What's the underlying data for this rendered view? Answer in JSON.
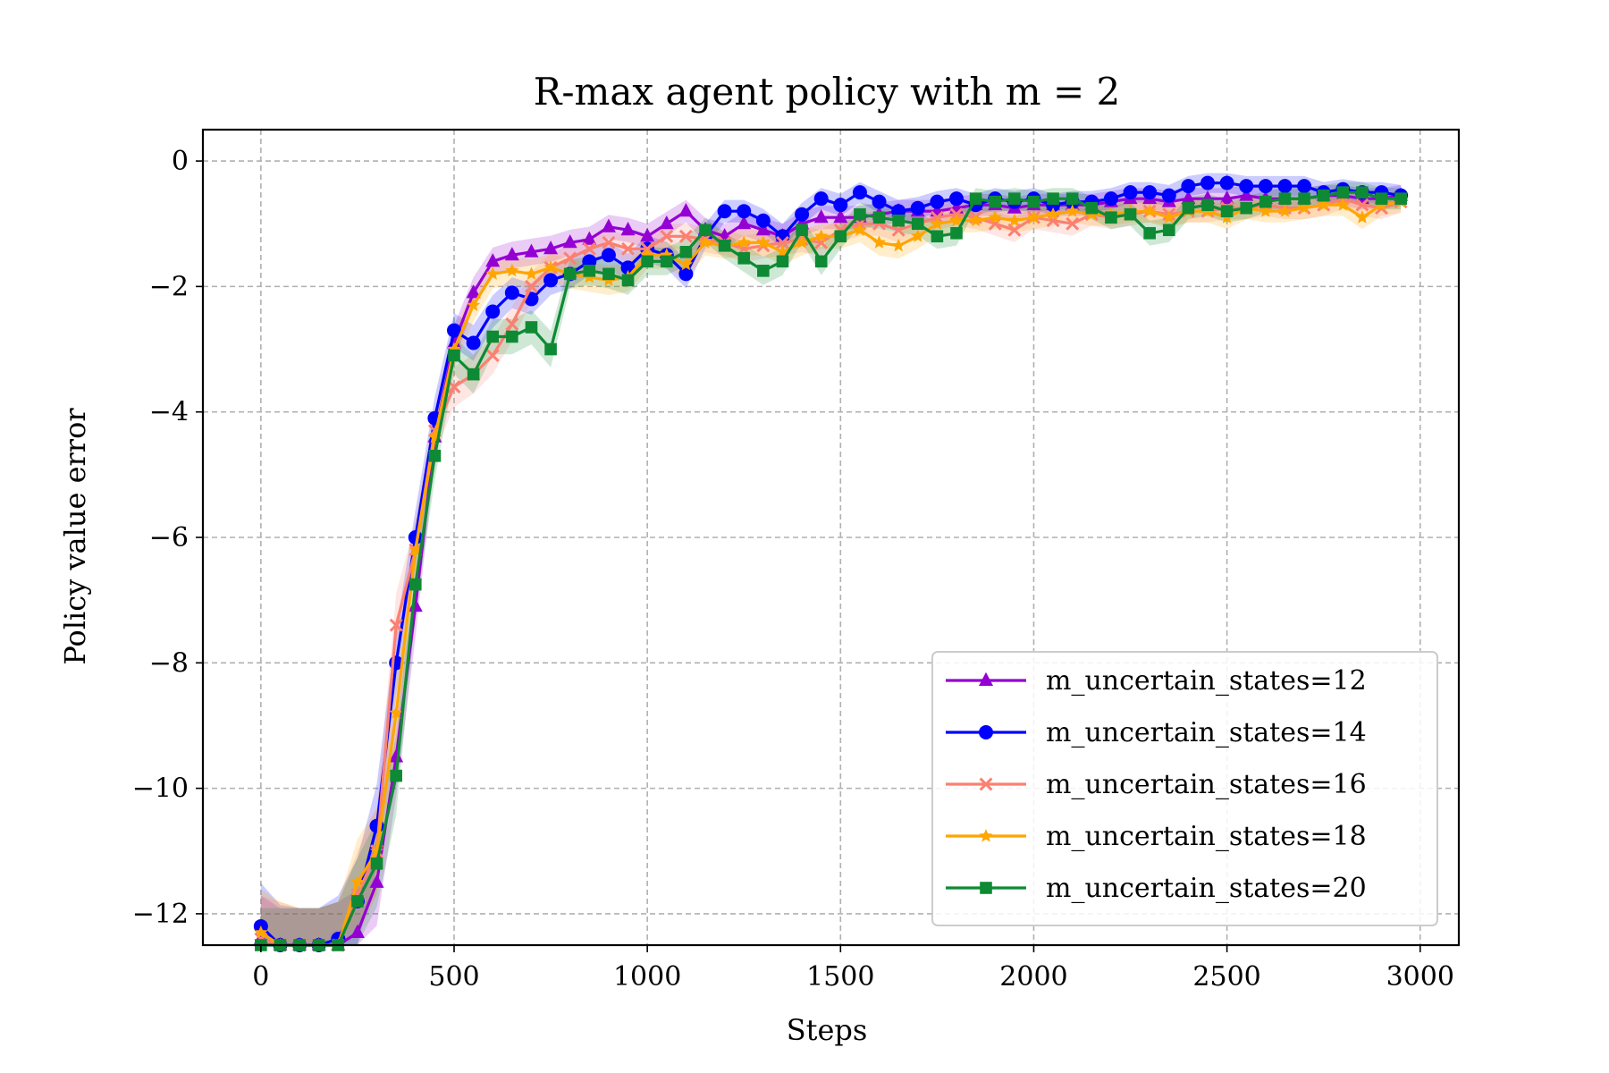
{
  "chart_data": {
    "type": "line",
    "title": "R-max agent policy with m = 2",
    "xlabel": "Steps",
    "ylabel": "Policy value error",
    "xlim": [
      -150,
      3100
    ],
    "ylim": [
      -12.5,
      0.5
    ],
    "xticks": [
      0,
      500,
      1000,
      1500,
      2000,
      2500,
      3000
    ],
    "yticks": [
      0,
      -2,
      -4,
      -6,
      -8,
      -10,
      -12
    ],
    "xtick_labels": [
      "0",
      "500",
      "1000",
      "1500",
      "2000",
      "2500",
      "3000"
    ],
    "ytick_labels": [
      "0",
      "−2",
      "−4",
      "−6",
      "−8",
      "−10",
      "−12"
    ],
    "grid": true,
    "legend_position": "lower-right",
    "x": [
      0,
      50,
      100,
      150,
      200,
      250,
      300,
      350,
      400,
      450,
      500,
      550,
      600,
      650,
      700,
      750,
      800,
      850,
      900,
      950,
      1000,
      1050,
      1100,
      1150,
      1200,
      1250,
      1300,
      1350,
      1400,
      1450,
      1500,
      1550,
      1600,
      1650,
      1700,
      1750,
      1800,
      1850,
      1900,
      1950,
      2000,
      2050,
      2100,
      2150,
      2200,
      2250,
      2300,
      2350,
      2400,
      2450,
      2500,
      2550,
      2600,
      2650,
      2700,
      2750,
      2800,
      2850,
      2900,
      2950
    ],
    "series": [
      {
        "name": "m_uncertain_states=12",
        "color": "#9400d3",
        "marker": "triangle",
        "values": [
          -12.4,
          -12.6,
          -12.6,
          -12.6,
          -12.5,
          -12.3,
          -11.5,
          -9.5,
          -7.1,
          -4.4,
          -2.9,
          -2.1,
          -1.6,
          -1.5,
          -1.45,
          -1.4,
          -1.3,
          -1.25,
          -1.05,
          -1.1,
          -1.2,
          -1.0,
          -0.8,
          -1.1,
          -1.2,
          -1.0,
          -1.1,
          -1.2,
          -1.0,
          -0.9,
          -0.9,
          -0.9,
          -0.85,
          -0.8,
          -0.8,
          -0.8,
          -0.75,
          -0.7,
          -0.7,
          -0.75,
          -0.7,
          -0.7,
          -0.7,
          -0.7,
          -0.65,
          -0.6,
          -0.6,
          -0.65,
          -0.6,
          -0.6,
          -0.6,
          -0.55,
          -0.6,
          -0.6,
          -0.6,
          -0.55,
          -0.55,
          -0.6,
          -0.6,
          -0.55
        ]
      },
      {
        "name": "m_uncertain_states=14",
        "color": "#0000ff",
        "marker": "circle",
        "values": [
          -12.2,
          -12.55,
          -12.6,
          -12.6,
          -12.4,
          -11.8,
          -10.6,
          -8.0,
          -6.0,
          -4.1,
          -2.7,
          -2.9,
          -2.4,
          -2.1,
          -2.2,
          -1.9,
          -1.8,
          -1.6,
          -1.5,
          -1.7,
          -1.4,
          -1.5,
          -1.8,
          -1.2,
          -0.8,
          -0.8,
          -0.95,
          -1.2,
          -0.85,
          -0.6,
          -0.7,
          -0.5,
          -0.65,
          -0.8,
          -0.75,
          -0.65,
          -0.6,
          -0.7,
          -0.6,
          -0.65,
          -0.6,
          -0.7,
          -0.65,
          -0.65,
          -0.6,
          -0.5,
          -0.5,
          -0.55,
          -0.4,
          -0.35,
          -0.35,
          -0.4,
          -0.4,
          -0.4,
          -0.4,
          -0.5,
          -0.45,
          -0.5,
          -0.5,
          -0.55
        ]
      },
      {
        "name": "m_uncertain_states=16",
        "color": "#fa8072",
        "marker": "x",
        "values": [
          -12.4,
          -12.5,
          -12.6,
          -12.6,
          -12.5,
          -11.7,
          -11.0,
          -7.4,
          -6.2,
          -4.3,
          -3.6,
          -3.4,
          -3.1,
          -2.6,
          -2.0,
          -1.7,
          -1.55,
          -1.4,
          -1.3,
          -1.4,
          -1.4,
          -1.2,
          -1.2,
          -1.25,
          -1.3,
          -1.4,
          -1.35,
          -1.3,
          -1.25,
          -1.3,
          -1.1,
          -1.0,
          -1.0,
          -1.1,
          -1.0,
          -0.9,
          -0.85,
          -0.9,
          -1.0,
          -1.1,
          -0.9,
          -0.95,
          -1.0,
          -0.85,
          -0.9,
          -0.85,
          -0.8,
          -0.85,
          -0.8,
          -0.8,
          -0.75,
          -0.75,
          -0.7,
          -0.75,
          -0.75,
          -0.7,
          -0.6,
          -0.7,
          -0.75,
          -0.65
        ]
      },
      {
        "name": "m_uncertain_states=18",
        "color": "#ffa500",
        "marker": "star",
        "values": [
          -12.3,
          -12.5,
          -12.6,
          -12.6,
          -12.5,
          -11.5,
          -11.0,
          -8.8,
          -6.2,
          -4.4,
          -3.0,
          -2.3,
          -1.8,
          -1.75,
          -1.8,
          -1.7,
          -1.8,
          -1.85,
          -1.9,
          -1.85,
          -1.5,
          -1.5,
          -1.65,
          -1.3,
          -1.35,
          -1.3,
          -1.3,
          -1.45,
          -1.3,
          -1.2,
          -1.2,
          -1.1,
          -1.3,
          -1.35,
          -1.2,
          -1.0,
          -0.95,
          -0.95,
          -0.9,
          -0.95,
          -0.9,
          -0.85,
          -0.8,
          -0.85,
          -0.85,
          -0.8,
          -0.8,
          -0.9,
          -0.8,
          -0.8,
          -0.9,
          -0.75,
          -0.8,
          -0.8,
          -0.75,
          -0.7,
          -0.7,
          -0.9,
          -0.7,
          -0.65
        ]
      },
      {
        "name": "m_uncertain_states=20",
        "color": "#0e8a34",
        "marker": "square",
        "values": [
          -12.6,
          -12.6,
          -12.6,
          -12.6,
          -12.5,
          -11.8,
          -11.2,
          -9.8,
          -6.75,
          -4.7,
          -3.1,
          -3.4,
          -2.8,
          -2.8,
          -2.65,
          -3.0,
          -1.8,
          -1.75,
          -1.8,
          -1.9,
          -1.6,
          -1.6,
          -1.45,
          -1.1,
          -1.35,
          -1.55,
          -1.75,
          -1.6,
          -1.1,
          -1.6,
          -1.2,
          -0.85,
          -0.9,
          -0.95,
          -1.0,
          -1.2,
          -1.15,
          -0.6,
          -0.65,
          -0.6,
          -0.65,
          -0.6,
          -0.6,
          -0.75,
          -0.9,
          -0.85,
          -1.15,
          -1.1,
          -0.75,
          -0.7,
          -0.8,
          -0.75,
          -0.65,
          -0.6,
          -0.6,
          -0.55,
          -0.5,
          -0.5,
          -0.6,
          -0.6
        ]
      }
    ]
  }
}
